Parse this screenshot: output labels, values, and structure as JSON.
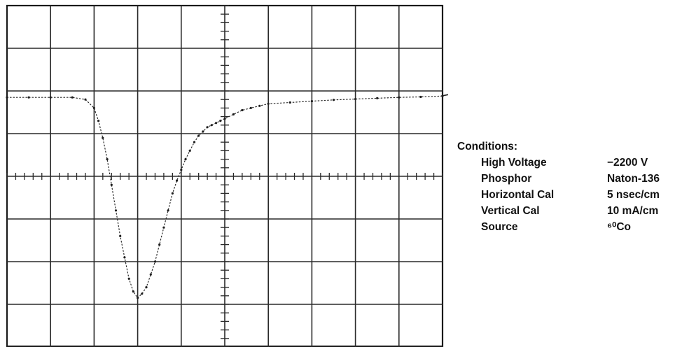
{
  "chart_data": {
    "type": "line",
    "title": "",
    "xlabel": "",
    "ylabel": "",
    "grid": true,
    "xlim": [
      -5,
      5
    ],
    "ylim": [
      -4,
      4
    ],
    "x_divisions": 10,
    "y_divisions": 8,
    "series": [
      {
        "x": [
          -5.0,
          -4.5,
          -4.0,
          -3.5,
          -3.2,
          -3.0,
          -2.9,
          -2.8,
          -2.7,
          -2.6,
          -2.5,
          -2.4,
          -2.3,
          -2.2,
          -2.1,
          -2.0,
          -1.9,
          -1.8,
          -1.7,
          -1.6,
          -1.5,
          -1.4,
          -1.3,
          -1.2,
          -1.1,
          -1.0,
          -0.9,
          -0.8,
          -0.7,
          -0.6,
          -0.5,
          -0.4,
          -0.3,
          -0.2,
          -0.1,
          0.0,
          0.2,
          0.4,
          0.6,
          0.8,
          1.0,
          1.5,
          2.0,
          2.5,
          3.0,
          3.5,
          4.0,
          4.5,
          5.0
        ],
        "y": [
          1.85,
          1.85,
          1.85,
          1.85,
          1.8,
          1.6,
          1.3,
          0.9,
          0.4,
          -0.2,
          -0.8,
          -1.4,
          -1.9,
          -2.4,
          -2.7,
          -2.85,
          -2.75,
          -2.6,
          -2.3,
          -2.0,
          -1.6,
          -1.2,
          -0.8,
          -0.4,
          -0.1,
          0.15,
          0.4,
          0.6,
          0.8,
          0.95,
          1.05,
          1.15,
          1.2,
          1.25,
          1.3,
          1.35,
          1.45,
          1.55,
          1.6,
          1.65,
          1.7,
          1.73,
          1.76,
          1.79,
          1.81,
          1.83,
          1.85,
          1.86,
          1.88
        ]
      }
    ],
    "note_label": "Conditions:",
    "conditions": [
      {
        "label": "High Voltage",
        "value": "−2200 V"
      },
      {
        "label": "Phosphor",
        "value": "Naton-136"
      },
      {
        "label": "Horizontal Cal",
        "value": "5 nsec/cm"
      },
      {
        "label": "Vertical Cal",
        "value": "10 mA/cm"
      },
      {
        "label": "Source",
        "value": "⁶⁰Co"
      }
    ]
  }
}
